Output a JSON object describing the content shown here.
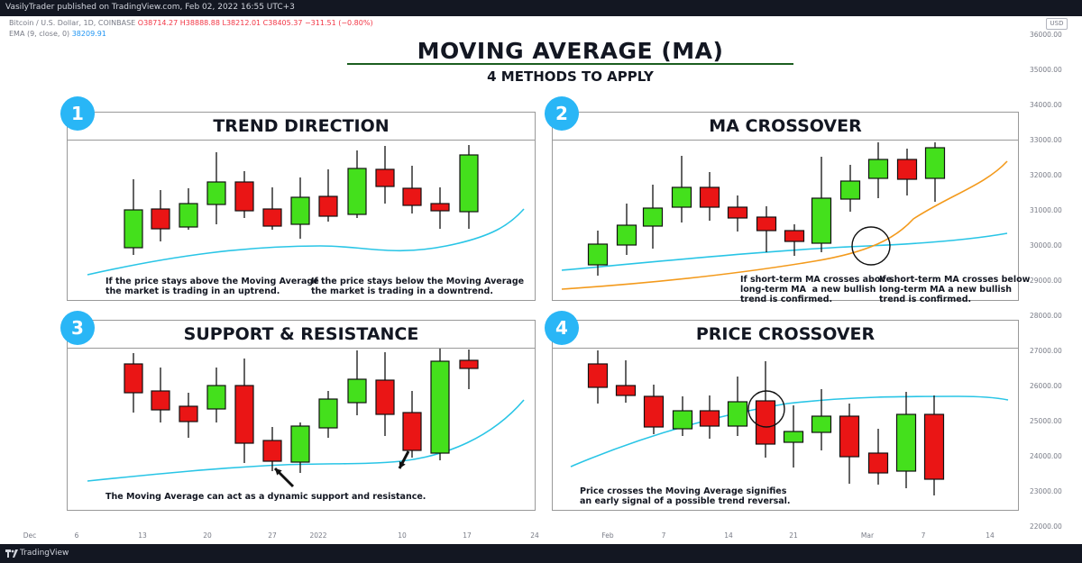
{
  "header": {
    "published": "VasilyTrader published on TradingView.com, Feb 02, 2022 16:55 UTC+3"
  },
  "symbol": {
    "name": "Bitcoin / U.S. Dollar, 1D, COINBASE",
    "ohlc": "O38714.27 H38888.88 L38212.01 C38405.37 −311.51 (−0.80%)",
    "ema_label": "EMA (9, close, 0)",
    "ema_value": "38209.91",
    "currency": "USD"
  },
  "price_axis": [
    "36000.00",
    "35000.00",
    "34000.00",
    "33000.00",
    "32000.00",
    "31000.00",
    "30000.00",
    "29000.00",
    "28000.00",
    "27000.00",
    "26000.00",
    "25000.00",
    "24000.00",
    "23000.00",
    "22000.00"
  ],
  "time_axis": [
    "Dec",
    "6",
    "13",
    "20",
    "27",
    "2022",
    "10",
    "17",
    "24",
    "Feb",
    "7",
    "14",
    "21",
    "Mar",
    "7",
    "14"
  ],
  "main": {
    "title": "MOVING AVERAGE (MA)",
    "subtitle": "4 METHODS TO APPLY"
  },
  "panels": [
    {
      "number": "1",
      "title": "TREND DIRECTION",
      "captions": [
        "If the price stays above the Moving Average\nthe market is trading in an uptrend.",
        "If the price stays below the Moving Average\nthe market is trading in a downtrend."
      ]
    },
    {
      "number": "2",
      "title": "MA CROSSOVER",
      "captions": [
        "If short-term MA crosses above\nlong-term MA  a new bullish\ntrend is confirmed.",
        "If short-term MA crosses below\nlong-term MA a new bullish\ntrend is confirmed."
      ]
    },
    {
      "number": "3",
      "title": "SUPPORT & RESISTANCE",
      "captions": [
        "The Moving Average can act as a dynamic support and resistance."
      ]
    },
    {
      "number": "4",
      "title": "PRICE CROSSOVER",
      "captions": [
        "Price crosses the Moving Average signifies\nan early signal of a possible trend reversal."
      ]
    }
  ],
  "footer": {
    "brand": "TradingView"
  },
  "colors": {
    "bull": "#44e01c",
    "bear": "#ea1515",
    "ma_short": "#29c5e6",
    "ma_long": "#f39a1c",
    "badge": "#29b6f6",
    "title_line": "#1b5e20"
  }
}
